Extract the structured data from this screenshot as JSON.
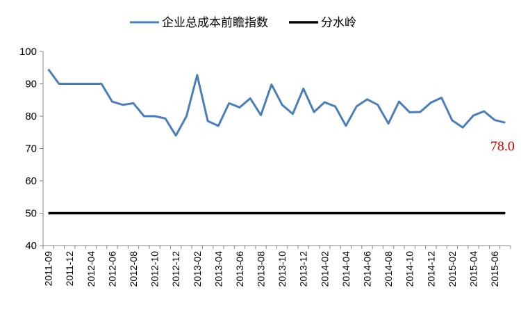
{
  "chart_data": {
    "type": "line",
    "categories": [
      "2011-09",
      null,
      "2011-12",
      null,
      "2012-04",
      null,
      "2012-06",
      null,
      "2012-08",
      null,
      "2012-10",
      null,
      "2012-12",
      null,
      "2013-02",
      null,
      "2013-04",
      null,
      "2013-06",
      null,
      "2013-08",
      null,
      "2013-10",
      null,
      "2013-12",
      null,
      "2014-02",
      null,
      "2014-04",
      null,
      "2014-06",
      null,
      "2014-08",
      null,
      "2014-10",
      null,
      "2014-12",
      null,
      "2015-02",
      null,
      "2015-04",
      null,
      "2015-06",
      null
    ],
    "series": [
      {
        "name": "企业总成本前瞻指数",
        "color": "#4a7ebb",
        "values": [
          94.5,
          90,
          90,
          90,
          90,
          90,
          84.5,
          83.5,
          84,
          80,
          80,
          79.3,
          74,
          80,
          92.7,
          78.5,
          77,
          84,
          82.7,
          85.5,
          80.3,
          89.8,
          83.5,
          80.7,
          88.5,
          81.3,
          84.3,
          83,
          77,
          83,
          85.2,
          83.5,
          77.7,
          84.5,
          81.2,
          81.3,
          84.2,
          85.7,
          78.7,
          76.5,
          80.2,
          81.5,
          78.8,
          78
        ],
        "value_labels": [
          null,
          null,
          null,
          null,
          null,
          null,
          null,
          null,
          null,
          null,
          null,
          null,
          null,
          null,
          null,
          null,
          null,
          null,
          null,
          null,
          null,
          null,
          null,
          null,
          null,
          null,
          null,
          null,
          null,
          null,
          null,
          null,
          null,
          null,
          null,
          null,
          null,
          null,
          null,
          null,
          null,
          null,
          null,
          "78.0"
        ],
        "label_color": "#e00000"
      },
      {
        "name": "分水岭",
        "color": "#000000",
        "values": [
          50,
          50,
          50,
          50,
          50,
          50,
          50,
          50,
          50,
          50,
          50,
          50,
          50,
          50,
          50,
          50,
          50,
          50,
          50,
          50,
          50,
          50,
          50,
          50,
          50,
          50,
          50,
          50,
          50,
          50,
          50,
          50,
          50,
          50,
          50,
          50,
          50,
          50,
          50,
          50,
          50,
          50,
          50,
          50
        ]
      }
    ],
    "ylim": [
      40,
      100
    ],
    "yticks": [
      40,
      50,
      60,
      70,
      80,
      90,
      100
    ],
    "legend": "top"
  }
}
